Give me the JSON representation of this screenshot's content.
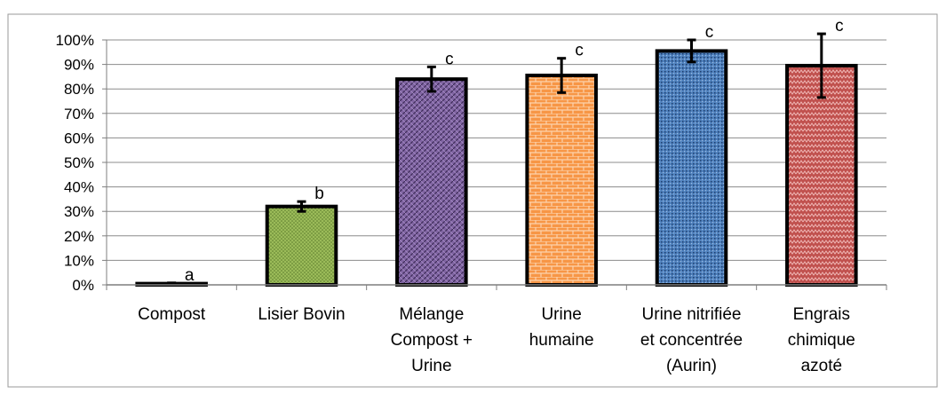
{
  "chart_data": {
    "type": "bar",
    "categories": [
      [
        "Compost"
      ],
      [
        "Lisier Bovin"
      ],
      [
        "Mélange",
        "Compost +",
        "Urine"
      ],
      [
        "Urine",
        "humaine"
      ],
      [
        "Urine nitrifiée",
        "et concentrée",
        "(Aurin)"
      ],
      [
        "Engrais",
        "chimique",
        "azoté"
      ]
    ],
    "values": [
      0.5,
      32,
      84,
      85.5,
      95.5,
      89.5
    ],
    "errors": [
      0.3,
      2,
      5,
      7,
      4.5,
      13
    ],
    "significance": [
      "a",
      "b",
      "c",
      "c",
      "c",
      "c"
    ],
    "colors": [
      "#ffffff",
      "#9bbb59",
      "#8064a2",
      "#f79646",
      "#4f81bd",
      "#c0504d"
    ],
    "patterns": [
      "none",
      "dots",
      "diagonal-weave",
      "brick",
      "dotted-grid",
      "zigzag"
    ],
    "ylim": [
      0,
      100
    ],
    "yticks": [
      "0%",
      "10%",
      "20%",
      "30%",
      "40%",
      "50%",
      "60%",
      "70%",
      "80%",
      "90%",
      "100%"
    ],
    "grid": true,
    "title": "",
    "xlabel": "",
    "ylabel": ""
  }
}
